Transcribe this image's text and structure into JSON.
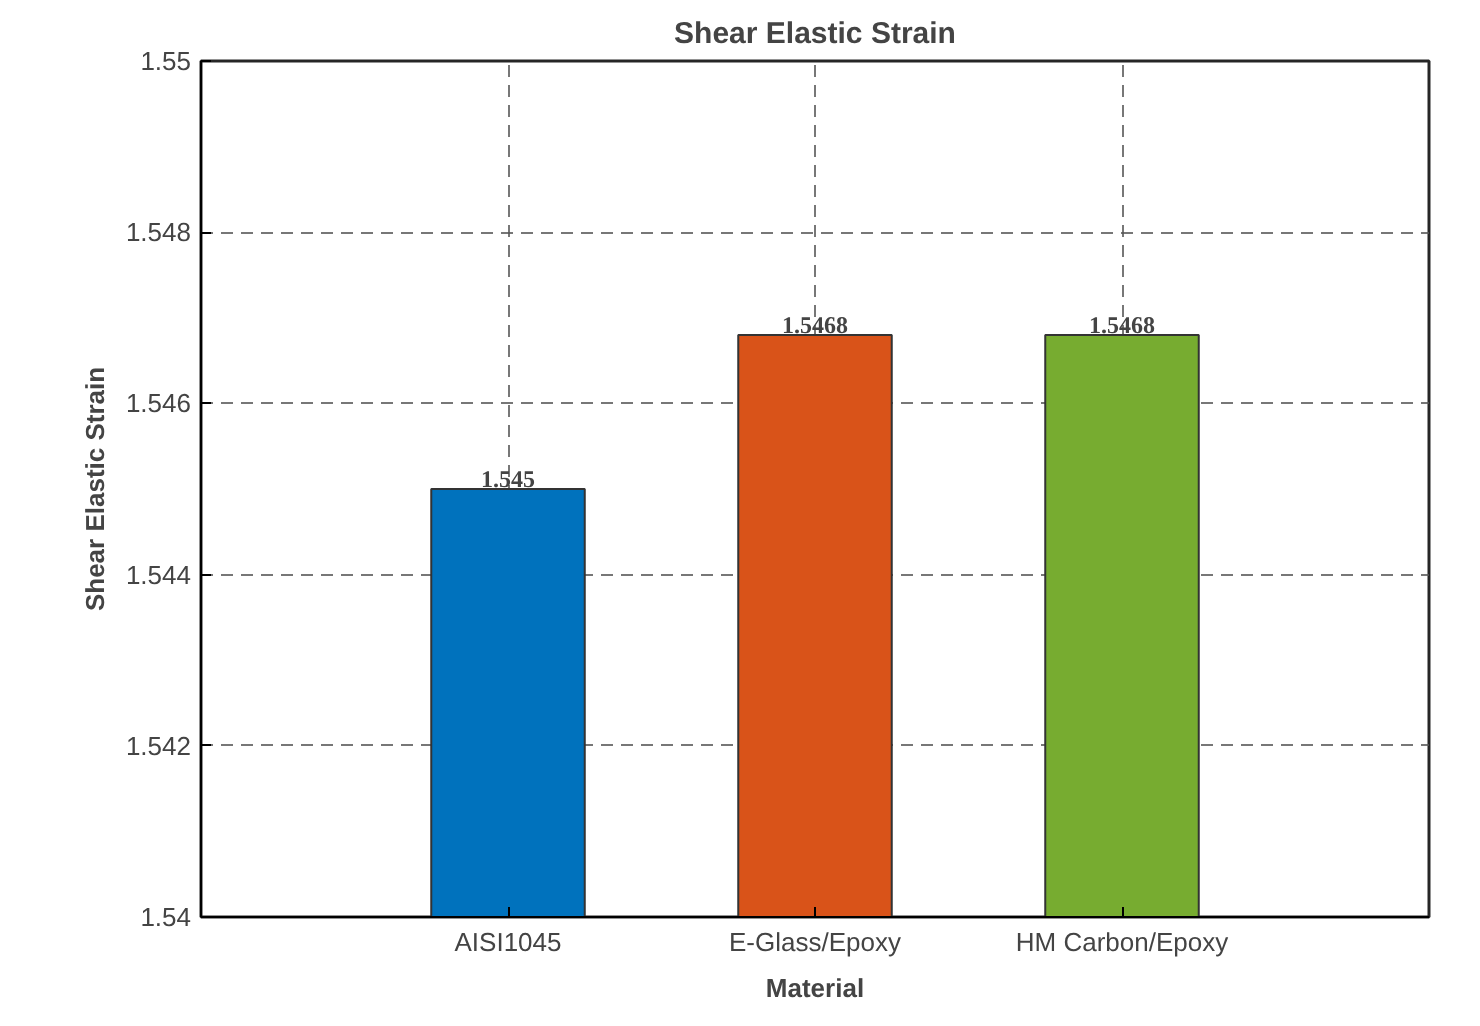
{
  "chart_data": {
    "type": "bar",
    "title": "Shear Elastic Strain",
    "xlabel": "Material",
    "ylabel": "Shear Elastic Strain",
    "categories": [
      "AISI1045",
      "E-Glass/Epoxy",
      "HM Carbon/Epoxy"
    ],
    "values": [
      1.545,
      1.5468,
      1.5468
    ],
    "colors": [
      "#0072bd",
      "#d95319",
      "#77ac30"
    ],
    "ylim": [
      1.54,
      1.55
    ],
    "yticks": [
      1.54,
      1.542,
      1.544,
      1.546,
      1.548,
      1.55
    ],
    "grid": true,
    "data_labels": true
  }
}
